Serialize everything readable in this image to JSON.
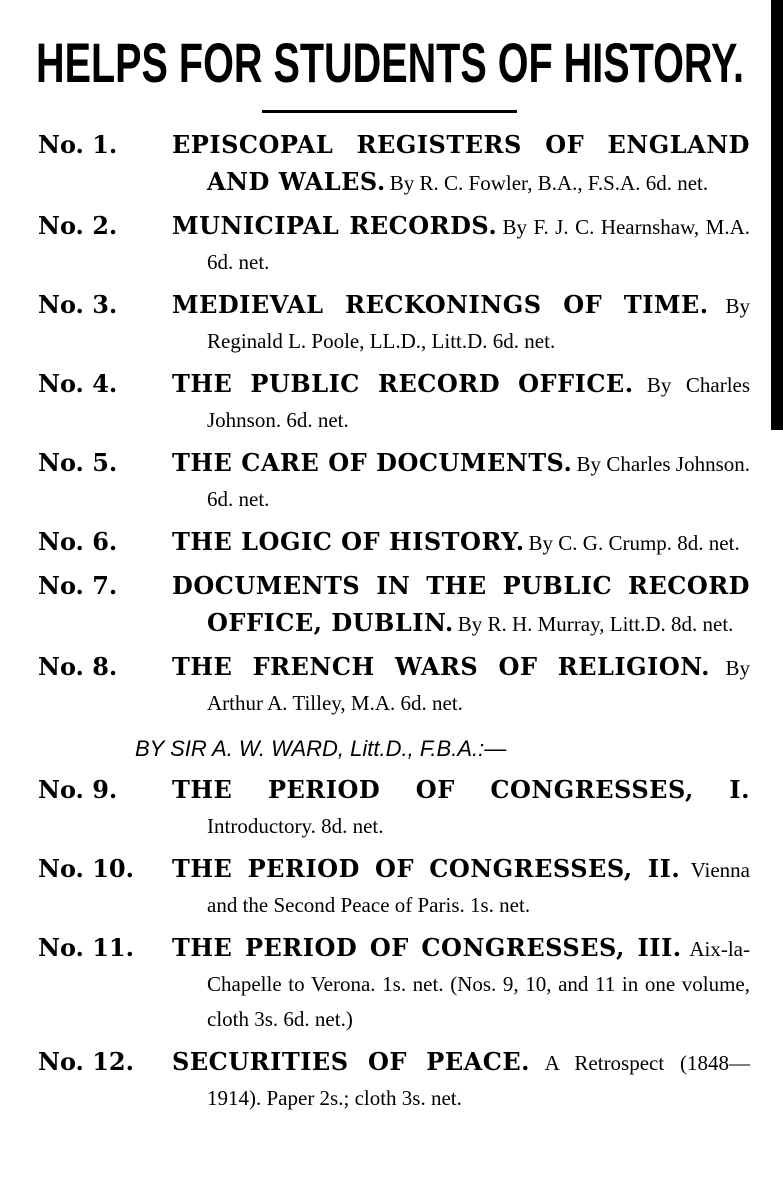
{
  "header": {
    "title": "HELPS FOR STUDENTS OF HISTORY."
  },
  "entries": [
    {
      "number": "No. 1.",
      "title": "EPISCOPAL REGISTERS OF ENGLAND AND WALES.",
      "details": "By R. C. Fowler, B.A., F.S.A. 6d. net."
    },
    {
      "number": "No. 2.",
      "title": "MUNICIPAL RECORDS.",
      "details": "By F. J. C. Hearnshaw, M.A. 6d. net."
    },
    {
      "number": "No. 3.",
      "title": "MEDIEVAL RECKONINGS OF TIME.",
      "details": "By Reginald L. Poole, LL.D., Litt.D. 6d. net."
    },
    {
      "number": "No. 4.",
      "title": "THE PUBLIC RECORD OFFICE.",
      "details": "By Charles Johnson. 6d. net."
    },
    {
      "number": "No. 5.",
      "title": "THE CARE OF DOCUMENTS.",
      "details": "By Charles Johnson. 6d. net."
    },
    {
      "number": "No. 6.",
      "title": "THE LOGIC OF HISTORY.",
      "details": "By C. G. Crump. 8d. net."
    },
    {
      "number": "No. 7.",
      "title": "DOCUMENTS IN THE PUBLIC RECORD OFFICE, DUBLIN.",
      "details": "By R. H. Murray, Litt.D. 8d. net."
    },
    {
      "number": "No. 8.",
      "title": "THE FRENCH WARS OF RELIGION.",
      "details": "By Arthur A. Tilley, M.A. 6d. net."
    }
  ],
  "ward": {
    "heading": "BY SIR A. W. WARD, Litt.D., F.B.A.:—",
    "entries": [
      {
        "number": "No. 9.",
        "title": "THE PERIOD OF CONGRESSES, I.",
        "details": "Introductory. 8d. net."
      },
      {
        "number": "No. 10.",
        "title": "THE PERIOD OF CONGRESSES, II.",
        "details": "Vienna and the Second Peace of Paris. 1s. net."
      },
      {
        "number": "No. 11.",
        "title": "THE PERIOD OF CONGRESSES, III.",
        "details": "Aix-la-Chapelle to Verona. 1s. net. (Nos. 9, 10, and 11 in one volume, cloth 3s. 6d. net.)"
      },
      {
        "number": "No. 12.",
        "title": "SECURITIES OF PEACE.",
        "details": "A Retrospect (1848—1914). Paper 2s.; cloth 3s. net."
      }
    ]
  }
}
